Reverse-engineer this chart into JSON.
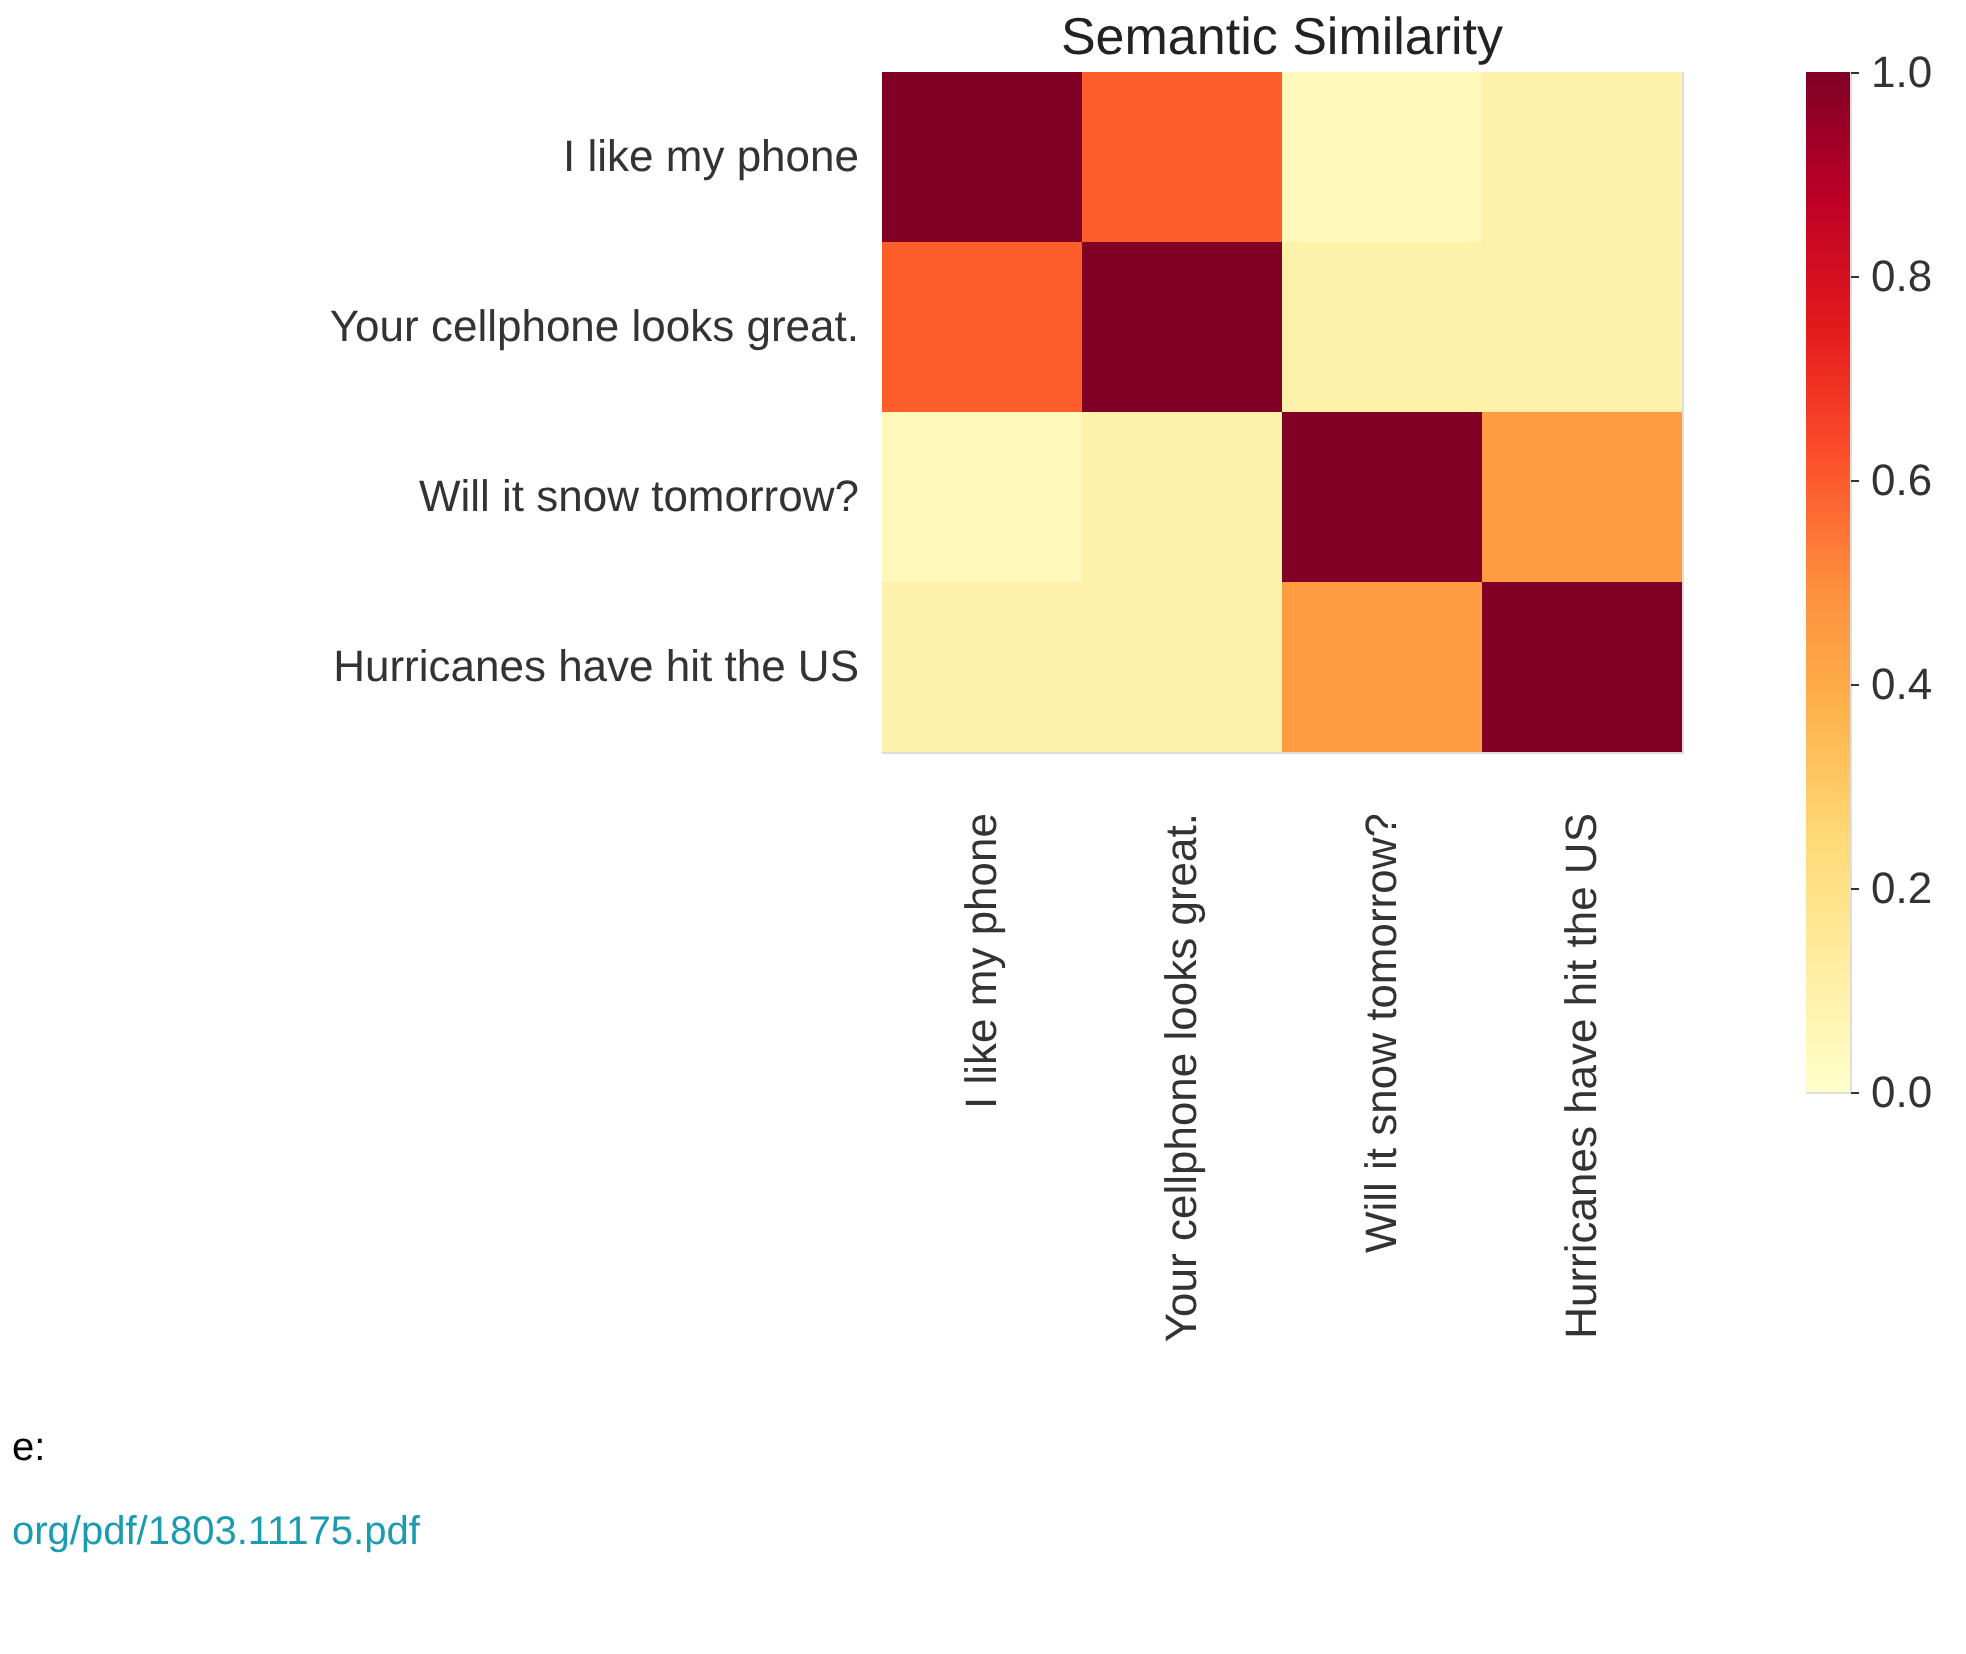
{
  "chart_data": {
    "type": "heatmap",
    "title": "Semantic Similarity",
    "categories": [
      "I like my phone",
      "Your cellphone looks great.",
      "Will it snow tomorrow?",
      "Hurricanes have hit the US"
    ],
    "y_categories": [
      "I like my phone",
      "Your cellphone looks great.",
      "Will it snow tomorrow?",
      "Hurricanes have hit the US"
    ],
    "cells": [
      [
        1.0,
        0.6,
        0.05,
        0.1
      ],
      [
        0.6,
        1.0,
        0.1,
        0.1
      ],
      [
        0.05,
        0.1,
        1.0,
        0.45
      ],
      [
        0.1,
        0.1,
        0.45,
        1.0
      ]
    ],
    "clim": [
      0,
      1
    ],
    "cticks": [
      {
        "value": 0,
        "label": "0.0"
      },
      0.2,
      0.4,
      0.6,
      0.8,
      {
        "value": 1,
        "label": "1.0"
      }
    ],
    "annotations": [
      "e:",
      "org/pdf/1803.11175.pdf"
    ]
  }
}
